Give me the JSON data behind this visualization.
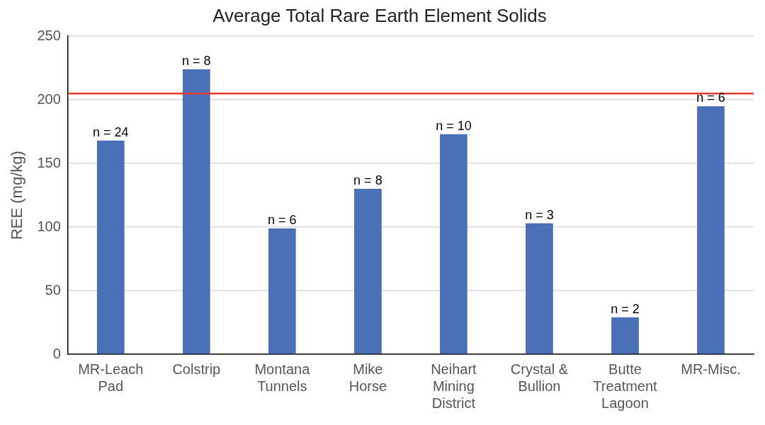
{
  "chart_data": {
    "type": "bar",
    "title": "Average Total Rare Earth Element Solids",
    "ylabel": "REE (mg/kg)",
    "categories": [
      "MR-Leach Pad",
      "Colstrip",
      "Montana Tunnels",
      "Mike Horse",
      "Neihart Mining District",
      "Crystal & Bullion",
      "Butte Treatment Lagoon",
      "MR-Misc."
    ],
    "values": [
      168,
      224,
      99,
      130,
      173,
      103,
      29,
      195
    ],
    "color": "#4a70b8",
    "ylim": [
      0,
      250
    ],
    "yticks": [
      0,
      50,
      100,
      150,
      200,
      250
    ],
    "grid": "y",
    "legend": false,
    "ref_lines": [
      {
        "axis": "y",
        "value": 205,
        "color": "#e8392b"
      }
    ],
    "annotations": [
      {
        "text": "n = 24",
        "x": "MR-Leach Pad",
        "y": 168
      },
      {
        "text": "n = 8",
        "x": "Colstrip",
        "y": 224
      },
      {
        "text": "n = 6",
        "x": "Montana Tunnels",
        "y": 99
      },
      {
        "text": "n = 8",
        "x": "Mike Horse",
        "y": 130
      },
      {
        "text": "n = 10",
        "x": "Neihart Mining District",
        "y": 173
      },
      {
        "text": "n = 3",
        "x": "Crystal & Bullion",
        "y": 103
      },
      {
        "text": "n = 2",
        "x": "Butte Treatment Lagoon",
        "y": 29
      },
      {
        "text": "n = 6",
        "x": "MR-Misc.",
        "y": 195
      }
    ]
  }
}
